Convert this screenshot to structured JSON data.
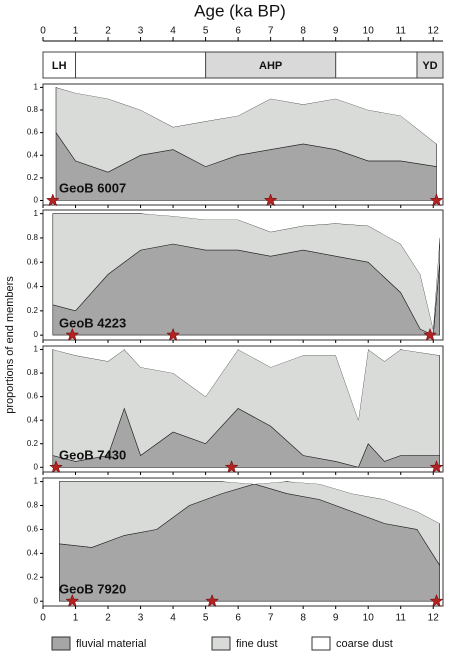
{
  "chart_data": [
    {
      "type": "area",
      "title": "Age (ka BP)",
      "label": "GeoB 6007",
      "stacked": true,
      "xlim": [
        0,
        12.3
      ],
      "xticks": [
        0,
        1,
        2,
        3,
        4,
        5,
        6,
        7,
        8,
        9,
        10,
        11,
        12
      ],
      "ylim": [
        -0.04,
        1.03
      ],
      "yticks": [
        0,
        0.2,
        0.4,
        0.6,
        0.8,
        1
      ],
      "periods": [
        {
          "label": "LH",
          "start": 0,
          "end": 1,
          "shaded": false
        },
        {
          "label": "AHP",
          "start": 5,
          "end": 9,
          "shaded": true
        },
        {
          "label": "YD",
          "start": 11.5,
          "end": 12.3,
          "shaded": true
        }
      ],
      "x": [
        0.4,
        1,
        2,
        3,
        4,
        5,
        6,
        7,
        8,
        9,
        10,
        11,
        12.1
      ],
      "series": [
        {
          "name": "fluvial material",
          "color": "#a6a6a6",
          "values": [
            0.6,
            0.35,
            0.25,
            0.4,
            0.45,
            0.3,
            0.4,
            0.45,
            0.5,
            0.45,
            0.35,
            0.35,
            0.3
          ]
        },
        {
          "name": "fine dust",
          "color": "#d9dbd9",
          "values": [
            0.4,
            0.6,
            0.65,
            0.4,
            0.2,
            0.4,
            0.35,
            0.45,
            0.35,
            0.45,
            0.45,
            0.4,
            0.2
          ]
        },
        {
          "name": "coarse dust",
          "color": "#ffffff",
          "values": [
            0,
            0.05,
            0.1,
            0.2,
            0.35,
            0.3,
            0.25,
            0.1,
            0.15,
            0.1,
            0.2,
            0.25,
            0.5
          ]
        }
      ],
      "stars": [
        0.3,
        7,
        12.1
      ],
      "star_color": "#b22222"
    },
    {
      "type": "area",
      "label": "GeoB 4223",
      "ylabel": "proportions of end members",
      "stacked": true,
      "xlim": [
        0,
        12.3
      ],
      "xticks": [
        0,
        1,
        2,
        3,
        4,
        5,
        6,
        7,
        8,
        9,
        10,
        11,
        12
      ],
      "ylim": [
        -0.04,
        1.03
      ],
      "yticks": [
        0,
        0.2,
        0.4,
        0.6,
        0.8,
        1
      ],
      "x": [
        0.3,
        1,
        2,
        3,
        4,
        5,
        6,
        7,
        8,
        9,
        10,
        11,
        11.6,
        12,
        12.2
      ],
      "series": [
        {
          "name": "fluvial material",
          "color": "#a6a6a6",
          "values": [
            0.25,
            0.2,
            0.5,
            0.7,
            0.75,
            0.7,
            0.7,
            0.65,
            0.7,
            0.65,
            0.6,
            0.35,
            0.05,
            0,
            0.6
          ]
        },
        {
          "name": "fine dust",
          "color": "#d9dbd9",
          "values": [
            0.75,
            0.8,
            0.5,
            0.3,
            0.23,
            0.25,
            0.25,
            0.2,
            0.2,
            0.27,
            0.3,
            0.4,
            0.45,
            0.05,
            0.2
          ]
        },
        {
          "name": "coarse dust",
          "color": "#ffffff",
          "values": [
            0,
            0,
            0,
            0,
            0.02,
            0.05,
            0.05,
            0.15,
            0.1,
            0.08,
            0.1,
            0.25,
            0.5,
            0.95,
            0.2
          ]
        }
      ],
      "stars": [
        0.9,
        4,
        11.9
      ],
      "star_color": "#b22222"
    },
    {
      "type": "area",
      "label": "GeoB 7430",
      "stacked": true,
      "xlim": [
        0,
        12.3
      ],
      "xticks": [
        0,
        1,
        2,
        3,
        4,
        5,
        6,
        7,
        8,
        9,
        10,
        11,
        12
      ],
      "ylim": [
        -0.04,
        1.03
      ],
      "yticks": [
        0,
        0.2,
        0.4,
        0.6,
        0.8,
        1
      ],
      "x": [
        0.3,
        1,
        2,
        2.5,
        3,
        4,
        5,
        6,
        7,
        8,
        9,
        9.7,
        10,
        10.5,
        11,
        12.2
      ],
      "series": [
        {
          "name": "fluvial material",
          "color": "#a6a6a6",
          "values": [
            0.1,
            0.05,
            0.1,
            0.5,
            0.1,
            0.3,
            0.2,
            0.5,
            0.35,
            0.1,
            0.05,
            0,
            0.2,
            0.05,
            0.1,
            0.1
          ]
        },
        {
          "name": "fine dust",
          "color": "#d9dbd9",
          "values": [
            0.9,
            0.9,
            0.8,
            0.5,
            0.75,
            0.5,
            0.4,
            0.5,
            0.5,
            0.85,
            0.9,
            0.4,
            0.8,
            0.85,
            0.9,
            0.85
          ]
        },
        {
          "name": "coarse dust",
          "color": "#ffffff",
          "values": [
            0,
            0.05,
            0.1,
            0,
            0.15,
            0.2,
            0.4,
            0,
            0.15,
            0.05,
            0.05,
            0.6,
            0,
            0.1,
            0,
            0.05
          ]
        }
      ],
      "stars": [
        0.4,
        5.8,
        12.1
      ],
      "star_color": "#b22222"
    },
    {
      "type": "area",
      "label": "GeoB 7920",
      "stacked": true,
      "xlim": [
        0,
        12.3
      ],
      "xticks": [
        0,
        1,
        2,
        3,
        4,
        5,
        6,
        7,
        8,
        9,
        10,
        11,
        12
      ],
      "ylim": [
        -0.04,
        1.03
      ],
      "yticks": [
        0,
        0.2,
        0.4,
        0.6,
        0.8,
        1
      ],
      "x": [
        0.5,
        1.5,
        2.5,
        3.5,
        4.5,
        5.5,
        6.5,
        7.5,
        8.5,
        9.5,
        10.5,
        11.5,
        12.2
      ],
      "series": [
        {
          "name": "fluvial material",
          "color": "#a6a6a6",
          "values": [
            0.48,
            0.45,
            0.55,
            0.6,
            0.8,
            0.9,
            0.98,
            0.9,
            0.85,
            0.75,
            0.65,
            0.6,
            0.3
          ]
        },
        {
          "name": "fine dust",
          "color": "#d9dbd9",
          "values": [
            0.52,
            0.55,
            0.45,
            0.4,
            0.2,
            0.1,
            0,
            0.1,
            0.13,
            0.15,
            0.2,
            0.15,
            0.35
          ]
        },
        {
          "name": "coarse dust",
          "color": "#ffffff",
          "values": [
            0,
            0,
            0,
            0,
            0,
            0,
            0.02,
            0,
            0.02,
            0.1,
            0.15,
            0.25,
            0.35
          ]
        }
      ],
      "stars": [
        0.9,
        5.2,
        12.1
      ],
      "star_color": "#b22222"
    }
  ]
}
